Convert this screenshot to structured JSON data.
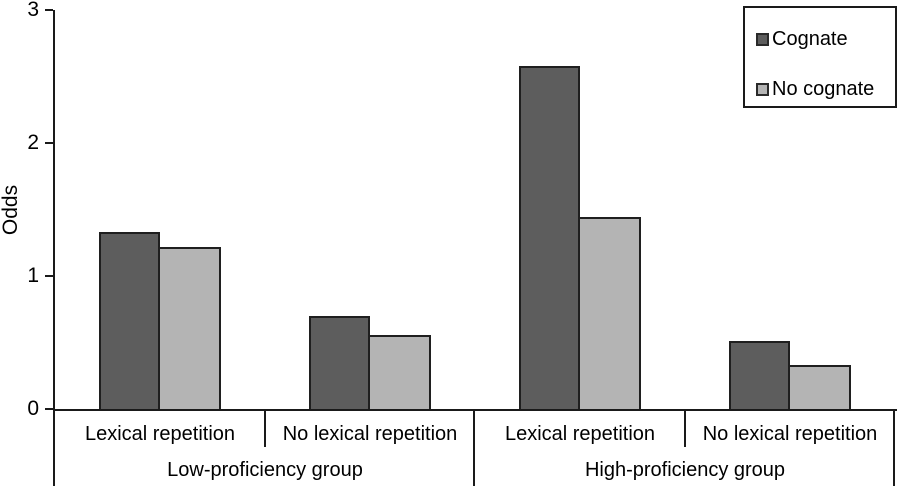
{
  "page": {
    "background": "#ffffff"
  },
  "chart_data": {
    "type": "bar",
    "title": "",
    "ylabel": "Odds",
    "xlabel": "",
    "ylim": [
      0,
      3
    ],
    "yticks": [
      0,
      1,
      2,
      3
    ],
    "grid": false,
    "legend_position": "top-right",
    "bar_border_color": "#1f1f1f",
    "axis_color": "#1a1a1a",
    "groups": [
      {
        "label": "Low-proficiency group",
        "categories": [
          "Lexical repetition",
          "No lexical repetition"
        ]
      },
      {
        "label": "High-proficiency group",
        "categories": [
          "Lexical repetition",
          "No lexical repetition"
        ]
      }
    ],
    "series": [
      {
        "name": "Cognate",
        "color": "#5d5d5d",
        "values": [
          1.33,
          0.7,
          2.58,
          0.51
        ]
      },
      {
        "name": "No cognate",
        "color": "#b4b4b4",
        "values": [
          1.22,
          0.56,
          1.44,
          0.33
        ]
      }
    ]
  }
}
